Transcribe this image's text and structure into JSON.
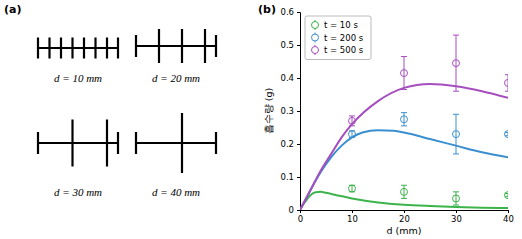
{
  "panel_labels": [
    "(a)",
    "(b)"
  ],
  "diagram": {
    "items": [
      {
        "d": 10,
        "label": "d = 10 mm"
      },
      {
        "d": 20,
        "label": "d = 20 mm"
      },
      {
        "d": 30,
        "label": "d = 30 mm"
      },
      {
        "d": 40,
        "label": "d = 40 mm"
      }
    ]
  },
  "chart_data": {
    "type": "scatter",
    "x_label": "d (mm)",
    "y_label": "흡수량 (g)",
    "xlim": [
      0,
      40
    ],
    "xticks": [
      0,
      10,
      20,
      30,
      40
    ],
    "ylim": [
      0,
      0.6
    ],
    "yticks": [
      0,
      0.1,
      0.2,
      0.3,
      0.4,
      0.5,
      0.6
    ],
    "legend": "upper left",
    "series": [
      {
        "name": "t = 10 s",
        "type": "scatter",
        "marker": "circle-open",
        "color": "#3cb44b",
        "x": [
          10,
          20,
          30,
          40
        ],
        "values": [
          0.065,
          0.055,
          0.035,
          0.045
        ],
        "errors": [
          0.01,
          0.02,
          0.02,
          0.005
        ]
      },
      {
        "name": "t = 200 s",
        "type": "scatter",
        "marker": "circle-open",
        "color": "#3a8fd0",
        "x": [
          10,
          20,
          30,
          40
        ],
        "values": [
          0.23,
          0.275,
          0.23,
          0.23
        ],
        "errors": [
          0.01,
          0.02,
          0.06,
          0.005
        ]
      },
      {
        "name": "t = 500 s",
        "type": "scatter",
        "marker": "circle-open",
        "color": "#a64dbf",
        "x": [
          10,
          20,
          30,
          40
        ],
        "values": [
          0.27,
          0.415,
          0.445,
          0.385
        ],
        "errors": [
          0.015,
          0.05,
          0.085,
          0.025
        ]
      },
      {
        "type": "line",
        "color": "#3cb44b",
        "x": [
          0,
          1,
          2,
          3,
          4,
          5,
          7,
          10,
          15,
          20,
          25,
          30,
          35,
          40
        ],
        "values": [
          0,
          0.025,
          0.045,
          0.054,
          0.055,
          0.052,
          0.045,
          0.035,
          0.023,
          0.016,
          0.012,
          0.009,
          0.007,
          0.006
        ]
      },
      {
        "type": "line",
        "color": "#3a8fd0",
        "x": [
          0,
          2,
          4,
          6,
          8,
          10,
          12,
          15,
          18,
          20,
          25,
          30,
          35,
          40
        ],
        "values": [
          0,
          0.06,
          0.115,
          0.16,
          0.195,
          0.22,
          0.235,
          0.242,
          0.24,
          0.235,
          0.215,
          0.195,
          0.175,
          0.16
        ]
      },
      {
        "type": "line",
        "color": "#a64dbf",
        "x": [
          0,
          2,
          4,
          6,
          8,
          10,
          15,
          20,
          25,
          30,
          35,
          40
        ],
        "values": [
          0,
          0.06,
          0.12,
          0.17,
          0.22,
          0.26,
          0.33,
          0.37,
          0.382,
          0.375,
          0.36,
          0.34
        ]
      }
    ]
  }
}
